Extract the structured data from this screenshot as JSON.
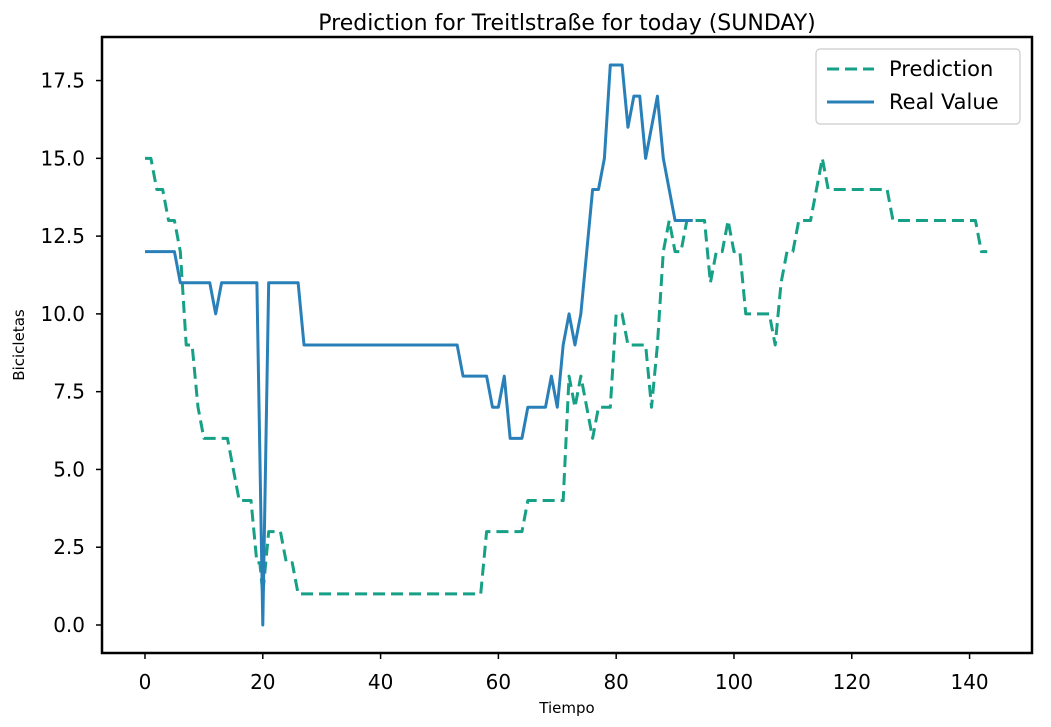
{
  "chart_data": {
    "type": "line",
    "title": "Prediction for Treitlstraße for today (SUNDAY)",
    "xlabel": "Tiempo",
    "ylabel": "Bicicletas",
    "xlim": [
      -7.3,
      150.6
    ],
    "ylim": [
      -0.9,
      18.9
    ],
    "xticks": [
      0,
      20,
      40,
      60,
      80,
      100,
      120,
      140
    ],
    "yticks": [
      0.0,
      2.5,
      5.0,
      7.5,
      10.0,
      12.5,
      15.0,
      17.5
    ],
    "xtick_labels": [
      "0",
      "20",
      "40",
      "60",
      "80",
      "100",
      "120",
      "140"
    ],
    "ytick_labels": [
      "0.0",
      "2.5",
      "5.0",
      "7.5",
      "10.0",
      "12.5",
      "15.0",
      "17.5"
    ],
    "grid": false,
    "legend_position": "top-right",
    "series": [
      {
        "name": "Prediction",
        "color": "#16a085",
        "style": "dashed",
        "points": [
          [
            0,
            15
          ],
          [
            1,
            15
          ],
          [
            2,
            14
          ],
          [
            3,
            14
          ],
          [
            4,
            13
          ],
          [
            5,
            13
          ],
          [
            6,
            12
          ],
          [
            7,
            9
          ],
          [
            8,
            9
          ],
          [
            9,
            7
          ],
          [
            10,
            6
          ],
          [
            11,
            6
          ],
          [
            12,
            6
          ],
          [
            13,
            6
          ],
          [
            14,
            6
          ],
          [
            15,
            5
          ],
          [
            16,
            4
          ],
          [
            17,
            4
          ],
          [
            18,
            4
          ],
          [
            19,
            2
          ],
          [
            19.5,
            2
          ],
          [
            20,
            1
          ],
          [
            20.5,
            2
          ],
          [
            21,
            3
          ],
          [
            22,
            3
          ],
          [
            23,
            3
          ],
          [
            24,
            2
          ],
          [
            25,
            2
          ],
          [
            26,
            1
          ],
          [
            57,
            1
          ],
          [
            58,
            3
          ],
          [
            64,
            3
          ],
          [
            65,
            4
          ],
          [
            71,
            4
          ],
          [
            72,
            8
          ],
          [
            73,
            7
          ],
          [
            74,
            8
          ],
          [
            75,
            7
          ],
          [
            76,
            6
          ],
          [
            77,
            7
          ],
          [
            79,
            7
          ],
          [
            80,
            10
          ],
          [
            81,
            10
          ],
          [
            82,
            9
          ],
          [
            85,
            9
          ],
          [
            86,
            7
          ],
          [
            87,
            9
          ],
          [
            88,
            12
          ],
          [
            89,
            13
          ],
          [
            90,
            12
          ],
          [
            91,
            12
          ],
          [
            92,
            13
          ],
          [
            95,
            13
          ],
          [
            96,
            11
          ],
          [
            97,
            12
          ],
          [
            98,
            12
          ],
          [
            99,
            13
          ],
          [
            100,
            12
          ],
          [
            101,
            12
          ],
          [
            102,
            10
          ],
          [
            106,
            10
          ],
          [
            107,
            9
          ],
          [
            108,
            11
          ],
          [
            109,
            12
          ],
          [
            110,
            12
          ],
          [
            111,
            13
          ],
          [
            113,
            13
          ],
          [
            114,
            14
          ],
          [
            115,
            15
          ],
          [
            116,
            14
          ],
          [
            126,
            14
          ],
          [
            127,
            13
          ],
          [
            141,
            13
          ],
          [
            142,
            12
          ],
          [
            143,
            12
          ]
        ]
      },
      {
        "name": "Real Value",
        "color": "#2980b9",
        "style": "solid",
        "points": [
          [
            0,
            12
          ],
          [
            5,
            12
          ],
          [
            6,
            11
          ],
          [
            11,
            11
          ],
          [
            12,
            10
          ],
          [
            13,
            11
          ],
          [
            19,
            11
          ],
          [
            20,
            0
          ],
          [
            21,
            11
          ],
          [
            26,
            11
          ],
          [
            27,
            9
          ],
          [
            53,
            9
          ],
          [
            54,
            8
          ],
          [
            58,
            8
          ],
          [
            59,
            7
          ],
          [
            60,
            7
          ],
          [
            61,
            8
          ],
          [
            62,
            6
          ],
          [
            64,
            6
          ],
          [
            65,
            7
          ],
          [
            68,
            7
          ],
          [
            69,
            8
          ],
          [
            70,
            7
          ],
          [
            71,
            9
          ],
          [
            72,
            10
          ],
          [
            73,
            9
          ],
          [
            74,
            10
          ],
          [
            75,
            12
          ],
          [
            76,
            14
          ],
          [
            77,
            14
          ],
          [
            78,
            15
          ],
          [
            79,
            18
          ],
          [
            81,
            18
          ],
          [
            82,
            16
          ],
          [
            83,
            17
          ],
          [
            84,
            17
          ],
          [
            85,
            15
          ],
          [
            86,
            16
          ],
          [
            87,
            17
          ],
          [
            88,
            15
          ],
          [
            89,
            14
          ],
          [
            90,
            13
          ],
          [
            93,
            13
          ]
        ]
      }
    ]
  }
}
